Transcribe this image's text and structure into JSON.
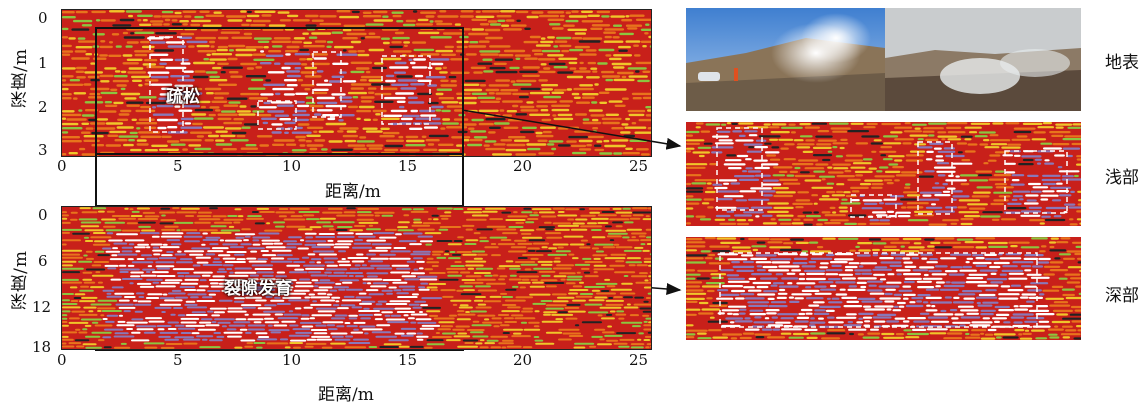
{
  "top_panel": {
    "y_ticks": [
      "0",
      "1",
      "2",
      "3"
    ],
    "x_ticks": [
      "0",
      "5",
      "10",
      "15",
      "20",
      "25"
    ],
    "ylabel": "深度/m",
    "xlabel": "距离/m",
    "annotation": "疏松"
  },
  "bottom_panel": {
    "y_ticks": [
      "0",
      "6",
      "12",
      "18"
    ],
    "x_ticks": [
      "0",
      "5",
      "10",
      "15",
      "20",
      "25"
    ],
    "ylabel": "深度/m",
    "xlabel": "距离/m",
    "annotation": "裂隙发育"
  },
  "right_labels": {
    "surface": "地表",
    "shallow": "浅部",
    "deep": "深部"
  },
  "colors": {
    "radar_red": "#c8201a",
    "radar_orange": "#e8741c",
    "radar_yellow": "#f0c62a",
    "radar_green": "#8cc63f",
    "radar_purple": "#8a78b8",
    "frame": "#111111"
  }
}
